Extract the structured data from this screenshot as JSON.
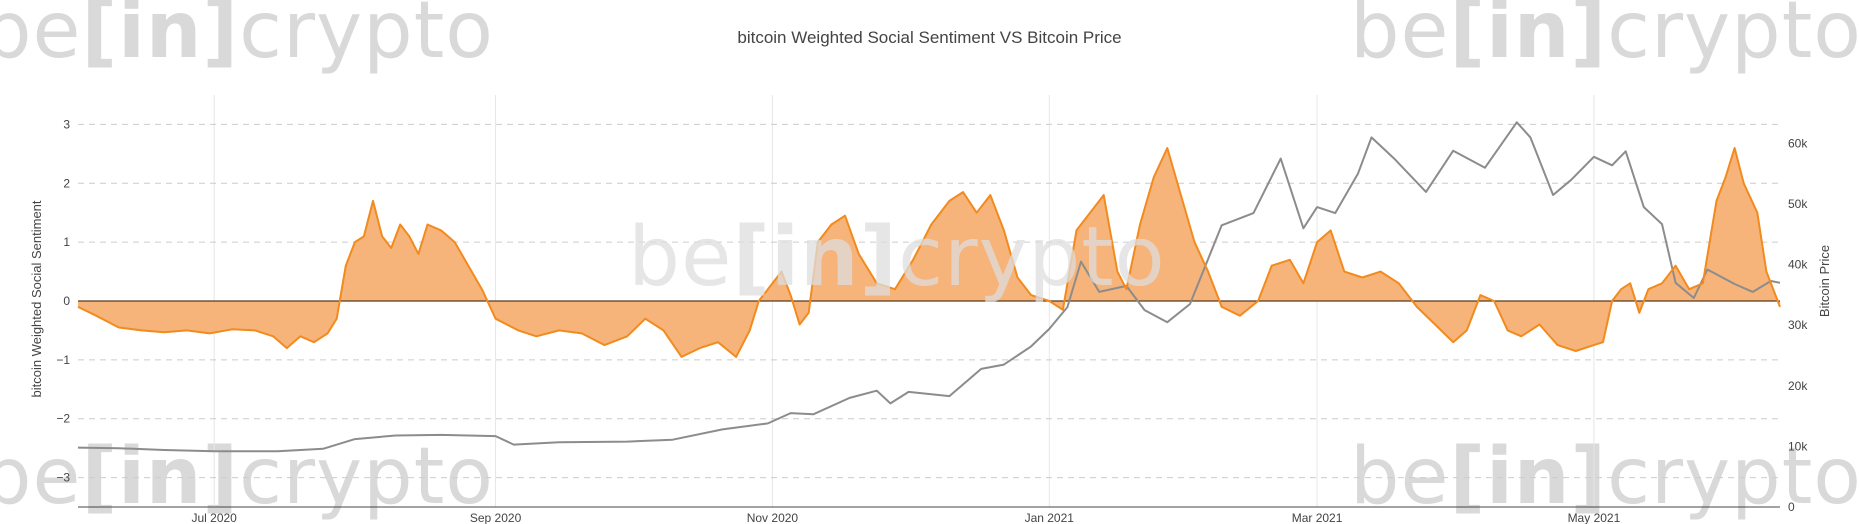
{
  "watermark": {
    "pre": "be",
    "mid": "[in]",
    "post": "crypto"
  },
  "chart_data": {
    "type": "line",
    "title": "bitcoin Weighted Social Sentiment VS Bitcoin Price",
    "xlabel": "",
    "ylabel": "bitcoin Weighted Social Sentiment",
    "y2label": "Bitcoin Price",
    "x_range": [
      "2020-06-01",
      "2021-06-11"
    ],
    "ylim": [
      -3.5,
      3.5
    ],
    "y2lim": [
      0,
      68000
    ],
    "x_ticks": [
      {
        "date": "2020-07-01",
        "label": "Jul 2020"
      },
      {
        "date": "2020-09-01",
        "label": "Sep 2020"
      },
      {
        "date": "2020-11-01",
        "label": "Nov 2020"
      },
      {
        "date": "2021-01-01",
        "label": "Jan 2021"
      },
      {
        "date": "2021-03-01",
        "label": "Mar 2021"
      },
      {
        "date": "2021-05-01",
        "label": "May 2021"
      }
    ],
    "y_ticks": [
      "3",
      "2",
      "1",
      "0",
      "−1",
      "−2",
      "−3"
    ],
    "y_tick_values": [
      3,
      2,
      1,
      0,
      -1,
      -2,
      -3
    ],
    "y2_ticks": [
      "60k",
      "50k",
      "40k",
      "30k",
      "20k",
      "10k",
      "0"
    ],
    "y2_tick_values": [
      60000,
      50000,
      40000,
      30000,
      20000,
      10000,
      0
    ],
    "colors": {
      "sentiment": "#f28a1e",
      "sentiment_fill": "#f7b47a",
      "price": "#8c8c8c",
      "grid": "#e6e6e6"
    },
    "series": [
      {
        "name": "bitcoin Weighted Social Sentiment",
        "axis": "y",
        "points": [
          [
            "2020-06-01",
            -0.1
          ],
          [
            "2020-06-05",
            -0.25
          ],
          [
            "2020-06-10",
            -0.45
          ],
          [
            "2020-06-15",
            -0.5
          ],
          [
            "2020-06-20",
            -0.53
          ],
          [
            "2020-06-25",
            -0.5
          ],
          [
            "2020-06-30",
            -0.55
          ],
          [
            "2020-07-05",
            -0.48
          ],
          [
            "2020-07-10",
            -0.5
          ],
          [
            "2020-07-14",
            -0.6
          ],
          [
            "2020-07-17",
            -0.8
          ],
          [
            "2020-07-20",
            -0.6
          ],
          [
            "2020-07-23",
            -0.7
          ],
          [
            "2020-07-26",
            -0.55
          ],
          [
            "2020-07-28",
            -0.3
          ],
          [
            "2020-07-30",
            0.6
          ],
          [
            "2020-08-01",
            1.0
          ],
          [
            "2020-08-03",
            1.1
          ],
          [
            "2020-08-05",
            1.7
          ],
          [
            "2020-08-07",
            1.1
          ],
          [
            "2020-08-09",
            0.9
          ],
          [
            "2020-08-11",
            1.3
          ],
          [
            "2020-08-13",
            1.1
          ],
          [
            "2020-08-15",
            0.8
          ],
          [
            "2020-08-17",
            1.3
          ],
          [
            "2020-08-20",
            1.2
          ],
          [
            "2020-08-23",
            1.0
          ],
          [
            "2020-08-26",
            0.6
          ],
          [
            "2020-08-29",
            0.2
          ],
          [
            "2020-09-01",
            -0.3
          ],
          [
            "2020-09-06",
            -0.5
          ],
          [
            "2020-09-10",
            -0.6
          ],
          [
            "2020-09-15",
            -0.5
          ],
          [
            "2020-09-20",
            -0.55
          ],
          [
            "2020-09-25",
            -0.75
          ],
          [
            "2020-09-30",
            -0.6
          ],
          [
            "2020-10-04",
            -0.3
          ],
          [
            "2020-10-08",
            -0.5
          ],
          [
            "2020-10-12",
            -0.95
          ],
          [
            "2020-10-16",
            -0.8
          ],
          [
            "2020-10-20",
            -0.7
          ],
          [
            "2020-10-24",
            -0.95
          ],
          [
            "2020-10-27",
            -0.5
          ],
          [
            "2020-10-29",
            0.0
          ],
          [
            "2020-11-01",
            0.3
          ],
          [
            "2020-11-03",
            0.5
          ],
          [
            "2020-11-05",
            0.1
          ],
          [
            "2020-11-07",
            -0.4
          ],
          [
            "2020-11-09",
            -0.2
          ],
          [
            "2020-11-11",
            1.0
          ],
          [
            "2020-11-14",
            1.3
          ],
          [
            "2020-11-17",
            1.45
          ],
          [
            "2020-11-20",
            0.8
          ],
          [
            "2020-11-24",
            0.3
          ],
          [
            "2020-11-28",
            0.2
          ],
          [
            "2020-12-02",
            0.7
          ],
          [
            "2020-12-06",
            1.3
          ],
          [
            "2020-12-10",
            1.7
          ],
          [
            "2020-12-13",
            1.85
          ],
          [
            "2020-12-16",
            1.5
          ],
          [
            "2020-12-19",
            1.8
          ],
          [
            "2020-12-22",
            1.2
          ],
          [
            "2020-12-25",
            0.4
          ],
          [
            "2020-12-28",
            0.1
          ],
          [
            "2021-01-01",
            0.0
          ],
          [
            "2021-01-04",
            -0.15
          ],
          [
            "2021-01-07",
            1.2
          ],
          [
            "2021-01-10",
            1.5
          ],
          [
            "2021-01-13",
            1.8
          ],
          [
            "2021-01-16",
            0.5
          ],
          [
            "2021-01-18",
            0.2
          ],
          [
            "2021-01-21",
            1.3
          ],
          [
            "2021-01-24",
            2.1
          ],
          [
            "2021-01-27",
            2.6
          ],
          [
            "2021-01-30",
            1.8
          ],
          [
            "2021-02-02",
            1.0
          ],
          [
            "2021-02-05",
            0.5
          ],
          [
            "2021-02-08",
            -0.1
          ],
          [
            "2021-02-12",
            -0.25
          ],
          [
            "2021-02-16",
            0.0
          ],
          [
            "2021-02-19",
            0.6
          ],
          [
            "2021-02-23",
            0.7
          ],
          [
            "2021-02-26",
            0.3
          ],
          [
            "2021-03-01",
            1.0
          ],
          [
            "2021-03-04",
            1.2
          ],
          [
            "2021-03-07",
            0.5
          ],
          [
            "2021-03-11",
            0.4
          ],
          [
            "2021-03-15",
            0.5
          ],
          [
            "2021-03-19",
            0.3
          ],
          [
            "2021-03-23",
            -0.1
          ],
          [
            "2021-03-27",
            -0.4
          ],
          [
            "2021-03-31",
            -0.7
          ],
          [
            "2021-04-03",
            -0.5
          ],
          [
            "2021-04-06",
            0.1
          ],
          [
            "2021-04-09",
            0.0
          ],
          [
            "2021-04-12",
            -0.5
          ],
          [
            "2021-04-15",
            -0.6
          ],
          [
            "2021-04-19",
            -0.4
          ],
          [
            "2021-04-23",
            -0.75
          ],
          [
            "2021-04-27",
            -0.85
          ],
          [
            "2021-05-01",
            -0.75
          ],
          [
            "2021-05-03",
            -0.7
          ],
          [
            "2021-05-05",
            0.0
          ],
          [
            "2021-05-07",
            0.2
          ],
          [
            "2021-05-09",
            0.3
          ],
          [
            "2021-05-11",
            -0.2
          ],
          [
            "2021-05-13",
            0.2
          ],
          [
            "2021-05-16",
            0.3
          ],
          [
            "2021-05-19",
            0.6
          ],
          [
            "2021-05-22",
            0.2
          ],
          [
            "2021-05-25",
            0.3
          ],
          [
            "2021-05-28",
            1.7
          ],
          [
            "2021-05-30",
            2.1
          ],
          [
            "2021-06-01",
            2.6
          ],
          [
            "2021-06-03",
            2.0
          ],
          [
            "2021-06-06",
            1.5
          ],
          [
            "2021-06-08",
            0.5
          ],
          [
            "2021-06-11",
            -0.1
          ]
        ]
      },
      {
        "name": "Bitcoin Price",
        "axis": "y2",
        "points": [
          [
            "2020-06-01",
            9800
          ],
          [
            "2020-06-10",
            9700
          ],
          [
            "2020-06-20",
            9400
          ],
          [
            "2020-07-01",
            9200
          ],
          [
            "2020-07-15",
            9200
          ],
          [
            "2020-07-25",
            9600
          ],
          [
            "2020-08-01",
            11200
          ],
          [
            "2020-08-10",
            11800
          ],
          [
            "2020-08-20",
            11900
          ],
          [
            "2020-09-01",
            11700
          ],
          [
            "2020-09-05",
            10300
          ],
          [
            "2020-09-15",
            10700
          ],
          [
            "2020-09-30",
            10800
          ],
          [
            "2020-10-10",
            11100
          ],
          [
            "2020-10-21",
            12800
          ],
          [
            "2020-10-31",
            13800
          ],
          [
            "2020-11-05",
            15500
          ],
          [
            "2020-11-10",
            15300
          ],
          [
            "2020-11-18",
            18000
          ],
          [
            "2020-11-24",
            19200
          ],
          [
            "2020-11-27",
            17100
          ],
          [
            "2020-12-01",
            19000
          ],
          [
            "2020-12-10",
            18300
          ],
          [
            "2020-12-17",
            22800
          ],
          [
            "2020-12-22",
            23500
          ],
          [
            "2020-12-28",
            26500
          ],
          [
            "2021-01-01",
            29400
          ],
          [
            "2021-01-05",
            33000
          ],
          [
            "2021-01-08",
            40500
          ],
          [
            "2021-01-12",
            35500
          ],
          [
            "2021-01-18",
            36500
          ],
          [
            "2021-01-22",
            32500
          ],
          [
            "2021-01-27",
            30500
          ],
          [
            "2021-02-01",
            33500
          ],
          [
            "2021-02-08",
            46500
          ],
          [
            "2021-02-15",
            48500
          ],
          [
            "2021-02-21",
            57500
          ],
          [
            "2021-02-26",
            46000
          ],
          [
            "2021-03-01",
            49500
          ],
          [
            "2021-03-05",
            48500
          ],
          [
            "2021-03-10",
            55000
          ],
          [
            "2021-03-13",
            61000
          ],
          [
            "2021-03-18",
            57500
          ],
          [
            "2021-03-25",
            52000
          ],
          [
            "2021-03-31",
            58800
          ],
          [
            "2021-04-07",
            56000
          ],
          [
            "2021-04-14",
            63500
          ],
          [
            "2021-04-17",
            61000
          ],
          [
            "2021-04-22",
            51500
          ],
          [
            "2021-04-26",
            54000
          ],
          [
            "2021-05-01",
            57800
          ],
          [
            "2021-05-05",
            56400
          ],
          [
            "2021-05-08",
            58700
          ],
          [
            "2021-05-12",
            49500
          ],
          [
            "2021-05-16",
            46700
          ],
          [
            "2021-05-19",
            37000
          ],
          [
            "2021-05-23",
            34500
          ],
          [
            "2021-05-26",
            39200
          ],
          [
            "2021-06-01",
            36800
          ],
          [
            "2021-06-05",
            35500
          ],
          [
            "2021-06-09",
            37300
          ],
          [
            "2021-06-11",
            37000
          ]
        ]
      }
    ]
  }
}
